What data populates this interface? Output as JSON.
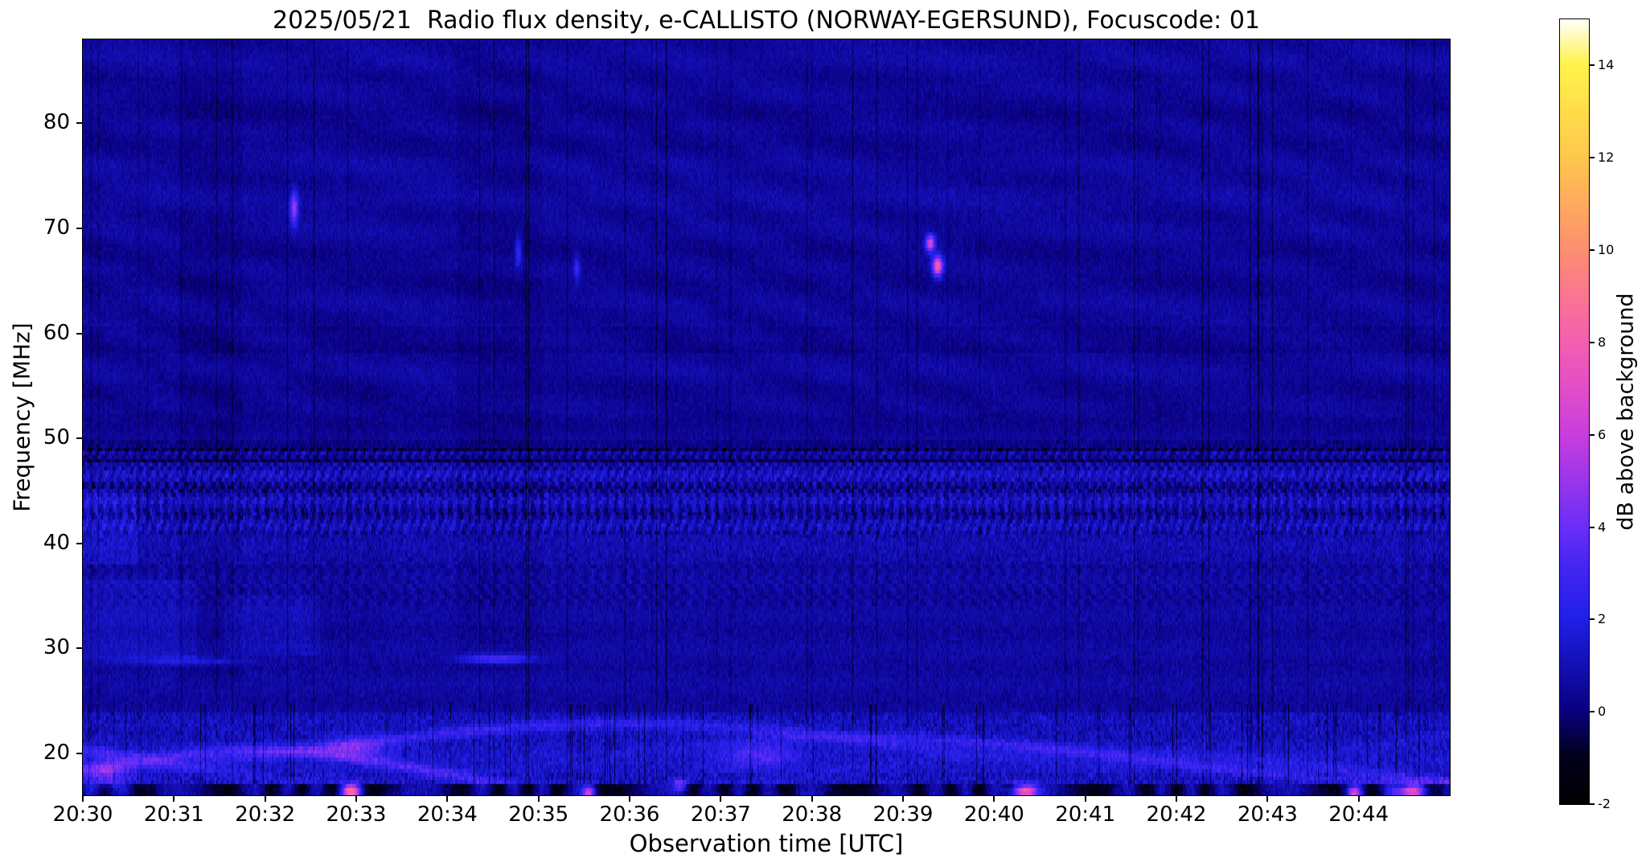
{
  "figure": {
    "background": "#ffffff"
  },
  "chart_data": {
    "type": "heatmap",
    "title": "2025/05/21  Radio flux density, e-CALLISTO (NORWAY-EGERSUND), Focuscode: 01",
    "xlabel": "Observation time [UTC]",
    "ylabel": "Frequency [MHz]",
    "x_tick_labels": [
      "20:30",
      "20:31",
      "20:32",
      "20:33",
      "20:34",
      "20:35",
      "20:36",
      "20:37",
      "20:38",
      "20:39",
      "20:40",
      "20:41",
      "20:42",
      "20:43",
      "20:44"
    ],
    "x_range_minutes": [
      0,
      15
    ],
    "y_tick_labels": [
      20,
      30,
      40,
      50,
      60,
      70,
      80
    ],
    "freq_range_mhz": [
      16,
      88
    ],
    "grid": false,
    "colorbar": {
      "label": "dB above background",
      "tick_labels": [
        14,
        12,
        10,
        8,
        6,
        4,
        2,
        0,
        -2
      ],
      "range": [
        -2,
        15
      ],
      "colormap_stops": [
        [
          0.0,
          "#000000"
        ],
        [
          0.06,
          "#03001c"
        ],
        [
          0.118,
          "#0a0080"
        ],
        [
          0.176,
          "#1410b4"
        ],
        [
          0.235,
          "#2020e8"
        ],
        [
          0.3,
          "#4326f2"
        ],
        [
          0.353,
          "#6b2ff7"
        ],
        [
          0.41,
          "#9a36ec"
        ],
        [
          0.47,
          "#c93ede"
        ],
        [
          0.53,
          "#e34fc8"
        ],
        [
          0.588,
          "#f45fb0"
        ],
        [
          0.65,
          "#fb7790"
        ],
        [
          0.706,
          "#fd8f71"
        ],
        [
          0.765,
          "#ffab5e"
        ],
        [
          0.824,
          "#ffc84e"
        ],
        [
          0.882,
          "#ffdd4a"
        ],
        [
          0.941,
          "#fff34a"
        ],
        [
          1.0,
          "#ffffff"
        ]
      ]
    },
    "background_level_db": 0.8,
    "noise_seed": 42,
    "bands": [
      {
        "freq_low": 41,
        "freq_high": 50,
        "description": "strong striped interference band"
      },
      {
        "freq_low": 58,
        "freq_high": 60.5,
        "description": "dark absorption line near 60 MHz"
      },
      {
        "freq_low": 16,
        "freq_high": 24,
        "description": "bright wavy ionospheric/interference structure"
      },
      {
        "freq_low": 16,
        "freq_high": 17.2,
        "description": "very bottom strip, alternating dark and bright with magenta patches"
      }
    ],
    "features": [
      {
        "t": 9.3,
        "f": 68.6,
        "dt": 0.035,
        "df": 0.55,
        "amp": 6.5
      },
      {
        "t": 9.38,
        "f": 66.4,
        "dt": 0.04,
        "df": 0.7,
        "amp": 7.5
      },
      {
        "t": 2.32,
        "f": 71.9,
        "dt": 0.03,
        "df": 1.1,
        "amp": 4.5
      },
      {
        "t": 4.78,
        "f": 67.8,
        "dt": 0.025,
        "df": 1.0,
        "amp": 2.6
      },
      {
        "t": 5.42,
        "f": 66.2,
        "dt": 0.025,
        "df": 0.9,
        "amp": 2.2
      },
      {
        "t": 4.55,
        "f": 29.0,
        "dt": 0.28,
        "df": 0.3,
        "amp": 3.0
      },
      {
        "t": 1.05,
        "f": 28.8,
        "dt": 0.5,
        "df": 0.28,
        "amp": 1.6
      },
      {
        "t": 0.25,
        "f": 18.0,
        "dt": 0.2,
        "df": 1.0,
        "amp": 2.5
      },
      {
        "t": 3.0,
        "f": 20.6,
        "dt": 0.25,
        "df": 0.8,
        "amp": 2.2
      },
      {
        "t": 7.4,
        "f": 19.8,
        "dt": 0.3,
        "df": 0.9,
        "amp": 2.0
      },
      {
        "t": 2.95,
        "f": 16.4,
        "dt": 0.07,
        "df": 0.45,
        "amp": 8.5
      },
      {
        "t": 5.55,
        "f": 16.3,
        "dt": 0.05,
        "df": 0.4,
        "amp": 6.5
      },
      {
        "t": 6.55,
        "f": 16.8,
        "dt": 0.06,
        "df": 0.5,
        "amp": 4.0
      },
      {
        "t": 10.33,
        "f": 16.4,
        "dt": 0.1,
        "df": 0.45,
        "amp": 8.5
      },
      {
        "t": 13.95,
        "f": 16.3,
        "dt": 0.05,
        "df": 0.4,
        "amp": 6.0
      },
      {
        "t": 14.55,
        "f": 16.4,
        "dt": 0.12,
        "df": 0.45,
        "amp": 7.5
      }
    ]
  }
}
